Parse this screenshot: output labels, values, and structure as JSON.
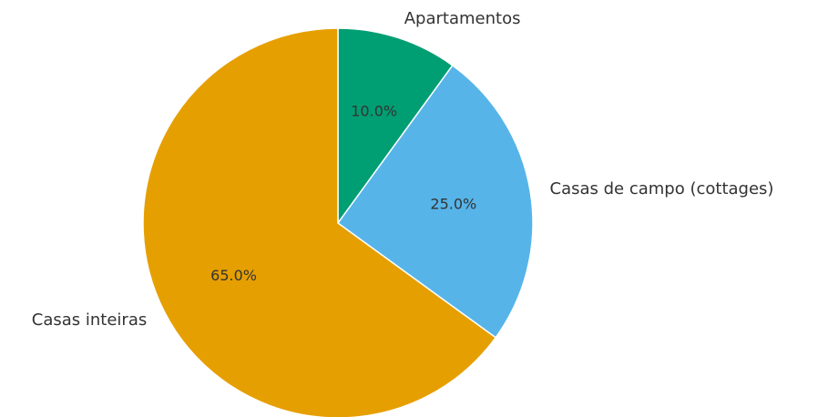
{
  "chart_data": {
    "type": "pie",
    "categories": [
      "Apartamentos",
      "Casas de campo (cottages)",
      "Casas inteiras"
    ],
    "values": [
      10,
      25,
      65
    ],
    "value_labels": [
      "10.0%",
      "25.0%",
      "65.0%"
    ],
    "colors": [
      "#009e73",
      "#56b4e9",
      "#e69f00"
    ]
  }
}
